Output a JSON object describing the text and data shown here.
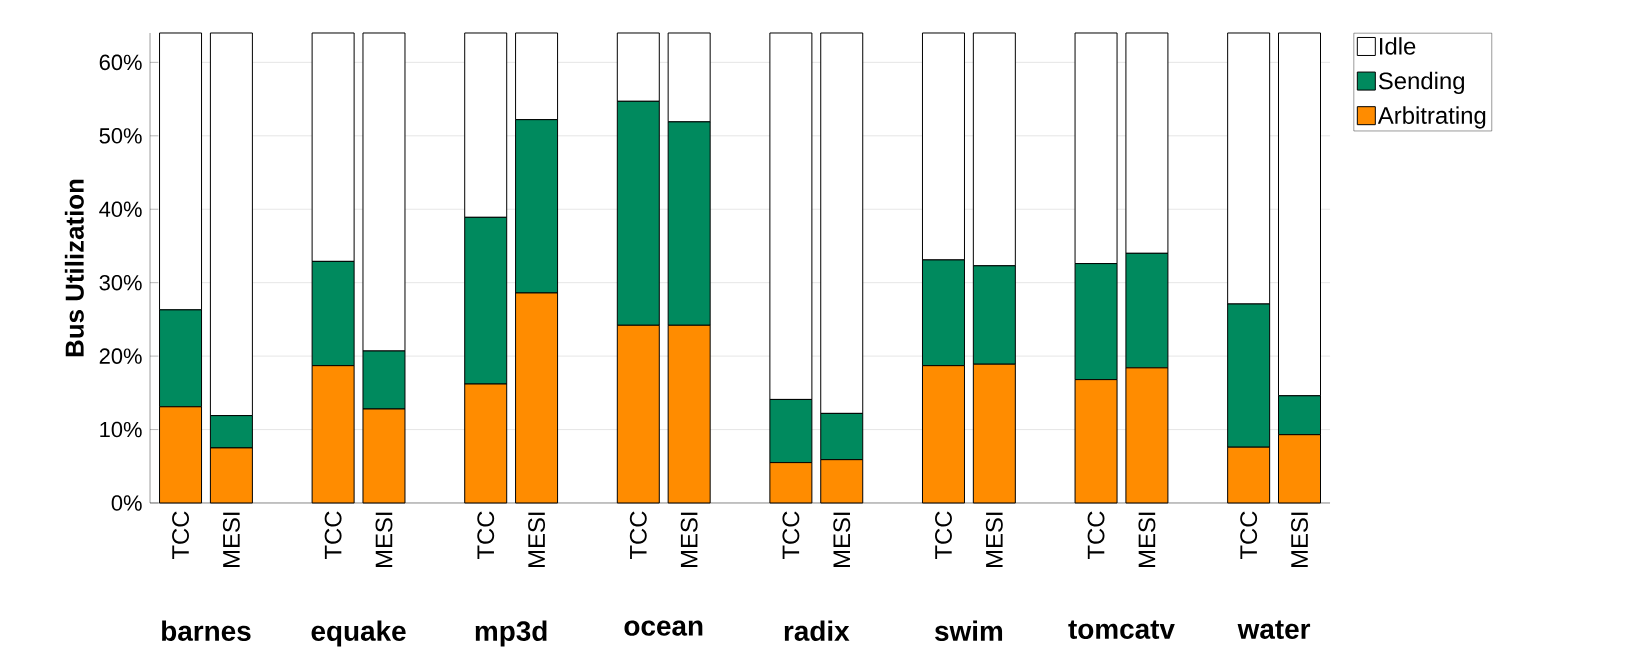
{
  "chart_data": {
    "type": "bar",
    "stacked": true,
    "ylabel": "Bus Utilization",
    "categories": [
      "TCC",
      "MESI",
      null,
      "TCC",
      "MESI",
      null,
      "TCC",
      "MESI",
      null,
      "TCC",
      "MESI",
      null,
      "TCC",
      "MESI",
      null,
      "TCC",
      "MESI",
      null,
      "TCC",
      "MESI",
      null,
      "TCC",
      "MESI"
    ],
    "series": [
      {
        "name": "Arbitrating",
        "color": "#ff8c00",
        "values": [
          13.1,
          7.5,
          null,
          18.7,
          12.8,
          null,
          16.2,
          28.6,
          null,
          24.2,
          24.2,
          null,
          5.5,
          5.9,
          null,
          18.7,
          18.9,
          null,
          16.8,
          18.4,
          null,
          7.6,
          9.3
        ]
      },
      {
        "name": "Sending",
        "color": "#008a5e",
        "values": [
          13.2,
          4.4,
          null,
          14.2,
          7.9,
          null,
          22.7,
          23.6,
          null,
          30.5,
          27.7,
          null,
          8.6,
          6.3,
          null,
          14.4,
          13.4,
          null,
          15.8,
          15.6,
          null,
          19.5,
          5.3
        ]
      },
      {
        "name": "Idle",
        "color": "#ffffff",
        "values": [
          37.7,
          52.1,
          null,
          31.1,
          43.3,
          null,
          25.1,
          11.8,
          null,
          9.3,
          12.1,
          null,
          49.9,
          51.8,
          null,
          30.9,
          31.7,
          null,
          31.4,
          30.0,
          null,
          36.9,
          49.4
        ]
      }
    ],
    "ylim": [
      0,
      64
    ],
    "yticks": [
      {
        "value": 0,
        "label": "0%"
      },
      {
        "value": 10,
        "label": "10%"
      },
      {
        "value": 20,
        "label": "20%"
      },
      {
        "value": 30,
        "label": "30%"
      },
      {
        "value": 40,
        "label": "40%"
      },
      {
        "value": 50,
        "label": "50%"
      },
      {
        "value": 60,
        "label": "60%"
      }
    ],
    "grid": "y",
    "legend": "right",
    "annotations": [
      "barnes",
      "equake",
      "mp3d",
      "ocean",
      "radix",
      "swim",
      "tomcatv",
      "water"
    ]
  }
}
